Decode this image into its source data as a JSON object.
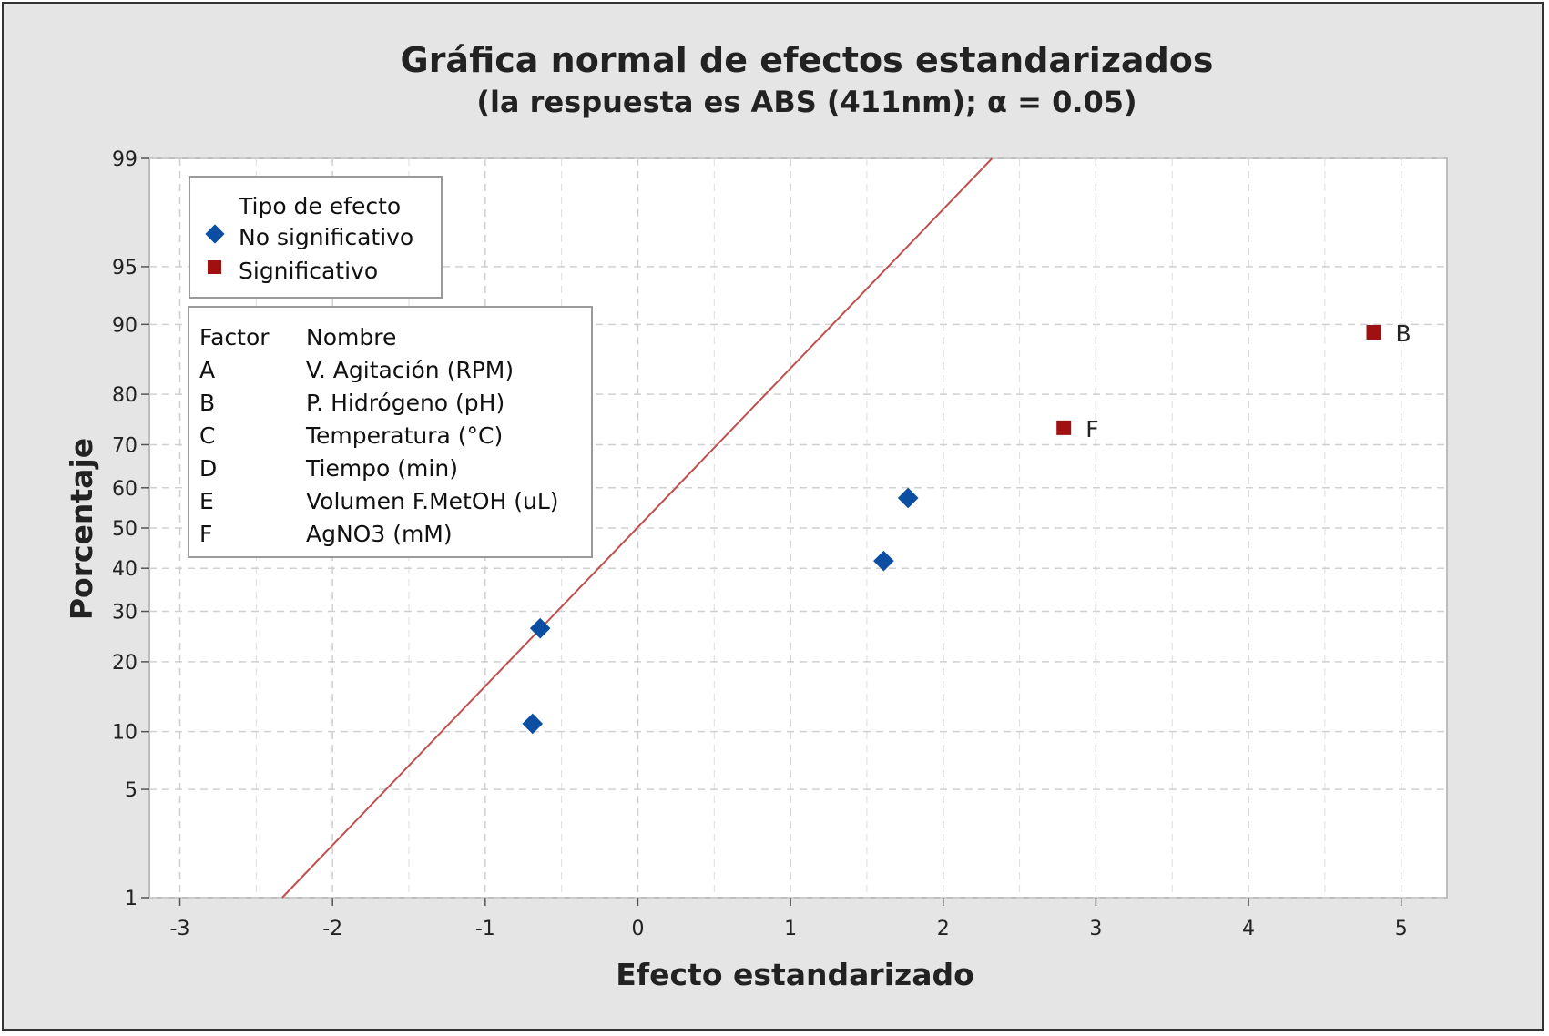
{
  "chart_data": {
    "type": "scatter",
    "title": "Gráfica normal de efectos estandarizados",
    "subtitle": "(la respuesta es ABS (411nm); α = 0.05)",
    "xlabel": "Efecto estandarizado",
    "ylabel": "Porcentaje",
    "xlim": [
      -3.2,
      5.3
    ],
    "xticks": [
      -3,
      -2,
      -1,
      0,
      1,
      2,
      3,
      4,
      5
    ],
    "y_scale": "normal probability",
    "ylim": [
      1,
      99
    ],
    "yticks": [
      1,
      5,
      10,
      20,
      30,
      40,
      50,
      60,
      70,
      80,
      90,
      95,
      99
    ],
    "grid": true,
    "reference_line": {
      "points": [
        {
          "x": -2.33,
          "y": 1
        },
        {
          "x": 2.32,
          "y": 99
        }
      ],
      "color": "#c0504d"
    },
    "series": [
      {
        "name": "No significativo",
        "marker": "diamond",
        "color": "#0b4ea2",
        "points": [
          {
            "x": -0.69,
            "y": 10.9,
            "label": ""
          },
          {
            "x": -0.64,
            "y": 26.4,
            "label": ""
          },
          {
            "x": 1.61,
            "y": 41.8,
            "label": ""
          },
          {
            "x": 1.77,
            "y": 57.5,
            "label": ""
          }
        ]
      },
      {
        "name": "Significativo",
        "marker": "square",
        "color": "#a01010",
        "points": [
          {
            "x": 2.79,
            "y": 73.6,
            "label": "F"
          },
          {
            "x": 4.82,
            "y": 89.1,
            "label": "B"
          }
        ]
      }
    ],
    "legend": {
      "placement": "top-left",
      "title": "Tipo de efecto",
      "items": [
        "No significativo",
        "Significativo"
      ]
    },
    "factor_table": {
      "placement": "top-left",
      "headers": [
        "Factor",
        "Nombre"
      ],
      "rows": [
        [
          "A",
          "V. Agitación (RPM)"
        ],
        [
          "B",
          "P. Hidrógeno (pH)"
        ],
        [
          "C",
          "Temperatura (°C)"
        ],
        [
          "D",
          "Tiempo (min)"
        ],
        [
          "E",
          "Volumen F.MetOH (uL)"
        ],
        [
          "F",
          "AgNO3 (mM)"
        ]
      ]
    }
  }
}
